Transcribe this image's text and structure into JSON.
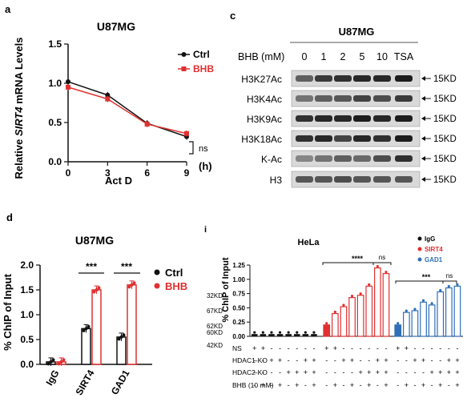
{
  "panel_a": {
    "letter": "a",
    "title": "U87MG",
    "ylabel_pre": "Relative ",
    "ylabel_gene": "SIRT4",
    "ylabel_post": " mRNA Levels",
    "xlabel": "Act D",
    "x_unit": "(h)",
    "sig": "ns",
    "legend": [
      "Ctrl",
      "BHB"
    ]
  },
  "panel_c": {
    "letter": "c",
    "title": "U87MG",
    "treatment_label": "BHB (mM)",
    "lanes": [
      "0",
      "1",
      "2",
      "5",
      "10",
      "TSA"
    ],
    "rows": [
      {
        "label": "H3K27Ac",
        "size": "15KD"
      },
      {
        "label": "H3K4Ac",
        "size": "15KD"
      },
      {
        "label": "H3K9Ac",
        "size": "15KD"
      },
      {
        "label": "H3K18Ac",
        "size": "15KD"
      },
      {
        "label": "K-Ac",
        "size": "15KD"
      },
      {
        "label": "H3",
        "size": "15KD"
      }
    ]
  },
  "panel_d": {
    "letter": "d",
    "title": "U87MG",
    "ylabel": "% ChIP of Input",
    "legend": [
      "Ctrl",
      "BHB"
    ],
    "sig": [
      "***",
      "***"
    ]
  },
  "panel_i": {
    "letter": "i",
    "title": "HeLa",
    "ylabel": "% ChIP of Input",
    "legend": [
      "IgG",
      "SIRT4",
      "GAD1"
    ],
    "sig": [
      "****",
      "ns",
      "***",
      "ns"
    ],
    "kd_labels": [
      "32KD",
      "67KD",
      "62KD",
      "60KD",
      "42KD"
    ],
    "row_labels": [
      "NS",
      "HDAC1-KO",
      "HDAC2-KO",
      "BHB (10 mM)"
    ],
    "rows": [
      [
        "+",
        "+",
        "-",
        "-",
        "-",
        "-",
        "-",
        "-"
      ],
      [
        "-",
        "-",
        "+",
        "+",
        "-",
        "-",
        "+",
        "+"
      ],
      [
        "-",
        "-",
        "-",
        "-",
        "+",
        "+",
        "+",
        "+"
      ],
      [
        "-",
        "+",
        "-",
        "+",
        "-",
        "+",
        "-",
        "+"
      ]
    ]
  },
  "chart_data": [
    {
      "type": "line",
      "x": [
        0,
        3,
        6,
        9
      ],
      "series": [
        {
          "name": "Ctrl",
          "values": [
            1.02,
            0.85,
            0.49,
            0.32
          ],
          "color": "#111111"
        },
        {
          "name": "BHB",
          "values": [
            0.95,
            0.8,
            0.48,
            0.36
          ],
          "color": "#e03030"
        }
      ],
      "xticks": [
        "0",
        "3",
        "6",
        "9"
      ],
      "yticks": [
        "0.0",
        "0.5",
        "1.0",
        "1.5"
      ],
      "xlim": [
        0,
        9
      ],
      "ylim": [
        0,
        1.5
      ]
    },
    {
      "type": "bar",
      "categories": [
        "IgG",
        "SIRT4",
        "GAD1"
      ],
      "series": [
        {
          "name": "Ctrl",
          "values": [
            0.05,
            0.72,
            0.55
          ],
          "color": "#111111"
        },
        {
          "name": "BHB",
          "values": [
            0.05,
            1.5,
            1.6
          ],
          "color": "#e03030"
        }
      ],
      "yticks": [
        "0.0",
        "0.5",
        "1.0",
        "1.5",
        "2.0"
      ],
      "ylim": [
        0,
        2.0
      ]
    },
    {
      "type": "bar",
      "groups": [
        "IgG",
        "SIRT4",
        "GAD1"
      ],
      "series": [
        {
          "name": "IgG",
          "values": [
            0.04,
            0.04,
            0.04,
            0.04,
            0.04,
            0.04,
            0.04,
            0.04
          ],
          "color": "#111111"
        },
        {
          "name": "SIRT4",
          "values": [
            0.2,
            0.4,
            0.52,
            0.68,
            0.72,
            0.88,
            1.2,
            1.1
          ],
          "color": "#e03030"
        },
        {
          "name": "GAD1",
          "values": [
            0.2,
            0.42,
            0.45,
            0.6,
            0.55,
            0.78,
            0.85,
            0.88
          ],
          "color": "#2e6fb7"
        }
      ],
      "yticks": [
        "0.00",
        "0.25",
        "0.50",
        "0.75",
        "1.00",
        "1.25"
      ],
      "ylim": [
        0,
        1.25
      ]
    }
  ]
}
